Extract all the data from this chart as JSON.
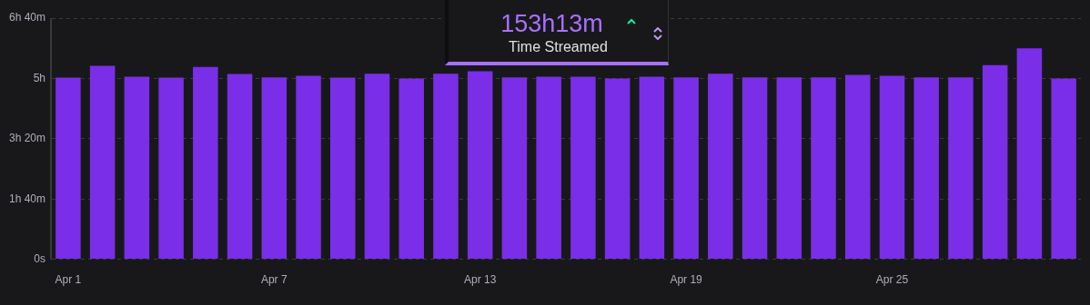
{
  "chart_data": {
    "type": "bar",
    "title": "153h13m",
    "subtitle": "Time Streamed",
    "categories": [
      "Apr 1",
      null,
      null,
      null,
      null,
      null,
      "Apr 7",
      null,
      null,
      null,
      null,
      null,
      "Apr 13",
      null,
      null,
      null,
      null,
      null,
      "Apr 19",
      null,
      null,
      null,
      null,
      null,
      "Apr 25",
      null,
      null,
      null,
      null,
      null
    ],
    "values": [
      5.02,
      5.35,
      5.05,
      5.02,
      5.32,
      5.12,
      5.03,
      5.07,
      5.02,
      5.13,
      5.0,
      5.13,
      5.2,
      5.03,
      5.05,
      5.05,
      5.0,
      5.05,
      5.03,
      5.13,
      5.03,
      5.03,
      5.03,
      5.1,
      5.07,
      5.03,
      5.03,
      5.37,
      5.83,
      5.0
    ],
    "color": "#7a2ee8",
    "ylim": [
      0,
      6.6667
    ],
    "yticks": [
      {
        "value": 0,
        "label": "0s"
      },
      {
        "value": 1.6667,
        "label": "1h 40m"
      },
      {
        "value": 3.3333,
        "label": "3h 20m"
      },
      {
        "value": 5,
        "label": "5h"
      },
      {
        "value": 6.6667,
        "label": "6h 40m"
      }
    ],
    "grid": "y"
  }
}
